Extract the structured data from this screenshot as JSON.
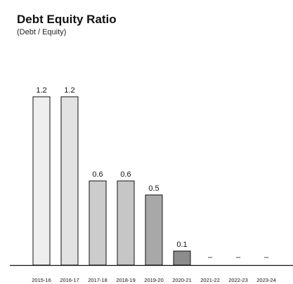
{
  "chart_data": {
    "type": "bar",
    "title": "Debt Equity Ratio",
    "subtitle": "(Debt / Equity)",
    "categories": [
      "2015-16",
      "2016-17",
      "2017-18",
      "2018-19",
      "2019-20",
      "2020-21",
      "2021-22",
      "2022-23",
      "2023-24"
    ],
    "values": [
      1.2,
      1.2,
      0.6,
      0.6,
      0.5,
      0.1,
      null,
      null,
      null
    ],
    "value_labels": [
      "1.2",
      "1.2",
      "0.6",
      "0.6",
      "0.5",
      "0.1",
      "–",
      "–",
      "–"
    ],
    "ylim": [
      0,
      1.5
    ],
    "grid": false,
    "bar_colors": [
      "#eeeeee",
      "#e2e2e2",
      "#cccccc",
      "#c6c6c6",
      "#a8a8a8",
      "#8c8c8c",
      "#8c8c8c",
      "#8c8c8c",
      "#8c8c8c"
    ],
    "bar_stroke": "#111111"
  }
}
